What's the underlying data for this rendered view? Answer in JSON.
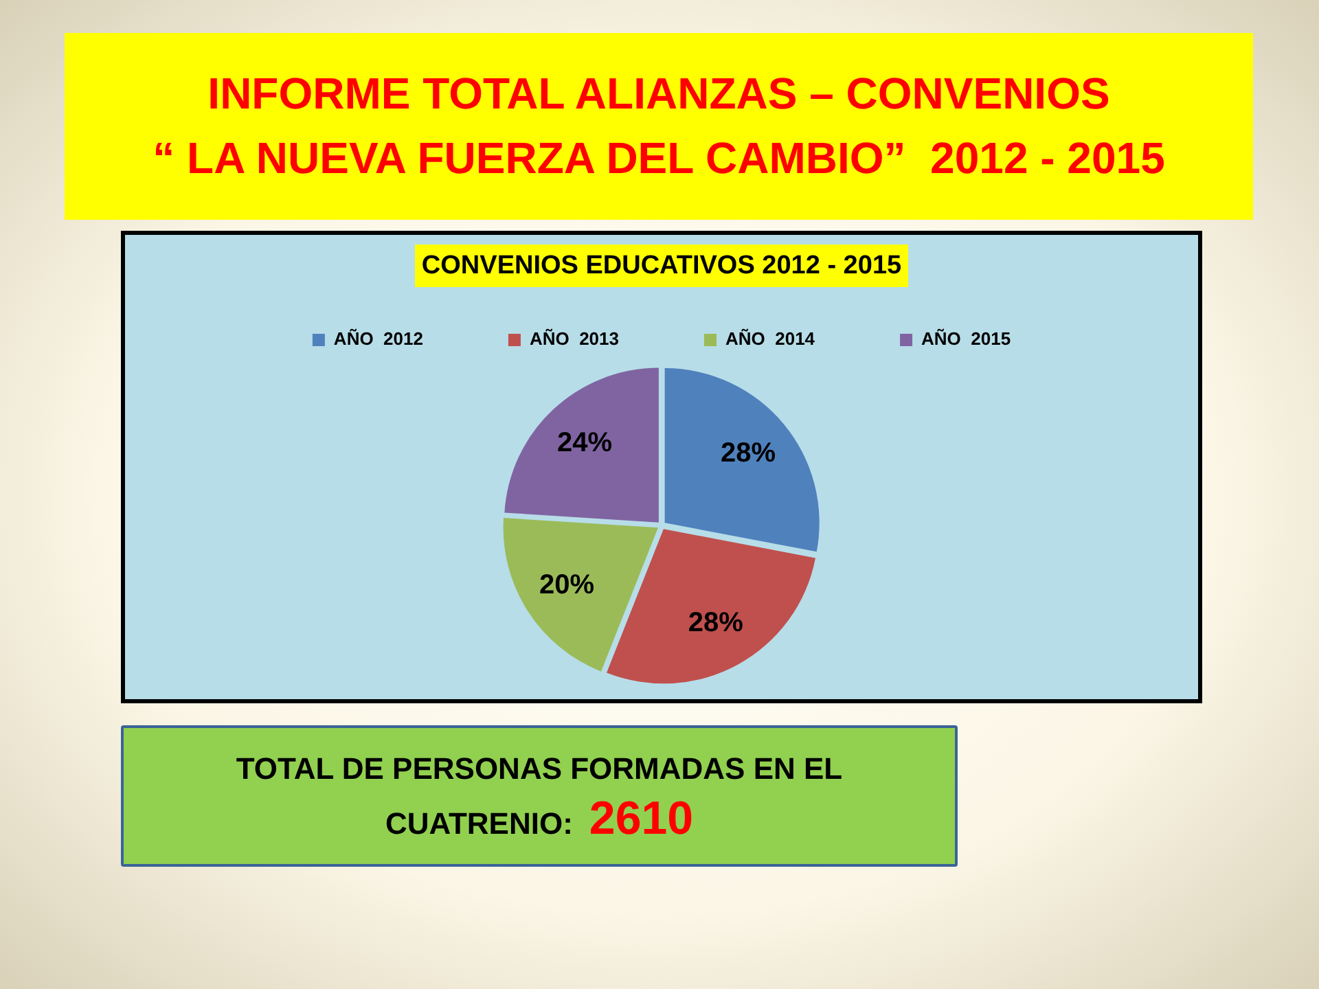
{
  "chart_data": {
    "type": "pie",
    "title": "INFORME TOTAL ALIANZAS – CONVENIOS\n“ LA NUEVA FUERZA DEL CAMBIO”  2012 - 2015",
    "subtitle": "CONVENIOS EDUCATIVOS 2012 - 2015",
    "categories": [
      "AÑO  2012",
      "AÑO  2013",
      "AÑO  2014",
      "AÑO  2015"
    ],
    "values": [
      28,
      28,
      20,
      24
    ],
    "colors": [
      "#4f81bd",
      "#c0504d",
      "#9bbb59",
      "#8064a2"
    ],
    "value_labels": [
      "28%",
      "28%",
      "20%",
      "24%"
    ],
    "legend": "top",
    "annotations": [
      "TOTAL DE PERSONAS FORMADAS EN EL",
      "CUATRENIO:",
      "2610"
    ]
  }
}
